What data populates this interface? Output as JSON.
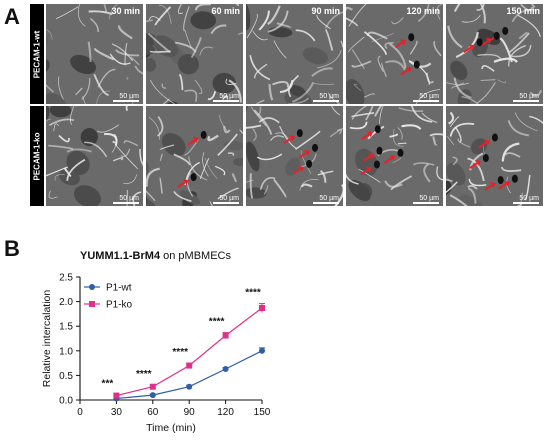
{
  "panel_a": {
    "letter": "A",
    "rows": [
      {
        "label": "PECAM-1-wt",
        "arrows": [
          0,
          0,
          0,
          2,
          3
        ]
      },
      {
        "label": "PECAM-1-ko",
        "arrows": [
          0,
          2,
          3,
          4,
          4
        ]
      }
    ],
    "time_labels": [
      "30 min",
      "60 min",
      "90 min",
      "120 min",
      "150 min"
    ],
    "scale_label": "50 µm",
    "arrow_color": "#e8202a"
  },
  "panel_b": {
    "letter": "B",
    "title_bold": "YUMM1.1-BrM4",
    "title_rest": "on pMBMECs"
  },
  "chart_data": {
    "type": "line",
    "xlabel": "Time (min)",
    "ylabel": "Relative intercalation",
    "x": [
      30,
      60,
      90,
      120,
      150
    ],
    "xticks": [
      "0",
      "30",
      "60",
      "90",
      "120",
      "150"
    ],
    "yticks": [
      "0.0",
      "0.5",
      "1.0",
      "1.5",
      "2.0",
      "2.5"
    ],
    "xlim": [
      0,
      150
    ],
    "ylim": [
      0,
      2.5
    ],
    "series": [
      {
        "name": "P1-wt",
        "color": "#2e5fa8",
        "marker": "circle",
        "values": [
          0.03,
          0.1,
          0.27,
          0.63,
          1.0
        ],
        "err": [
          0.01,
          0.02,
          0.03,
          0.03,
          0.06
        ]
      },
      {
        "name": "P1-ko",
        "color": "#e0308a",
        "marker": "square",
        "values": [
          0.09,
          0.27,
          0.7,
          1.31,
          1.87
        ],
        "err": [
          0.02,
          0.03,
          0.05,
          0.06,
          0.09
        ]
      }
    ],
    "significance": [
      "***",
      "****",
      "****",
      "****",
      "****"
    ],
    "legend_position": "upper-left"
  }
}
